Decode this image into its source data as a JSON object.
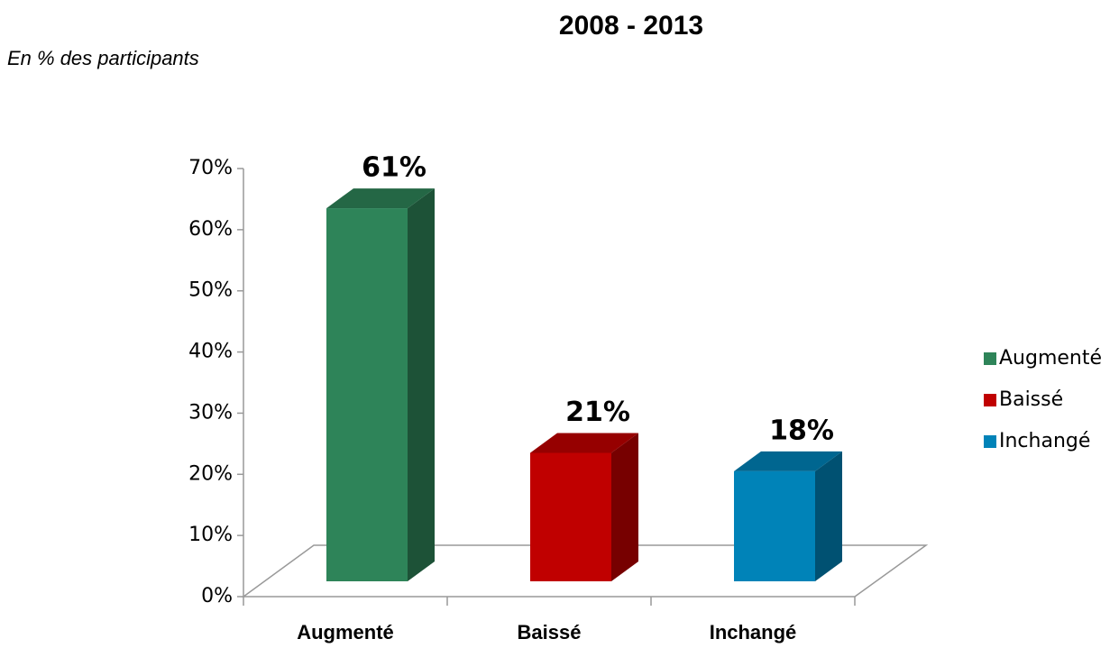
{
  "chart_data": {
    "type": "bar3d",
    "title": "2008 - 2013",
    "subtitle": "En % des participants",
    "categories": [
      "Augmenté",
      "Baissé",
      "Inchangé"
    ],
    "values": [
      61,
      21,
      18
    ],
    "value_labels": [
      "61%",
      "21%",
      "18%"
    ],
    "colors": [
      "#2e8459",
      "#c00000",
      "#0083b8"
    ],
    "ylim": [
      0,
      70
    ],
    "yticks": [
      {
        "value": 0,
        "label": "0%"
      },
      {
        "value": 10,
        "label": "10%"
      },
      {
        "value": 20,
        "label": "20%"
      },
      {
        "value": 30,
        "label": "30%"
      },
      {
        "value": 40,
        "label": "40%"
      },
      {
        "value": 50,
        "label": "50%"
      },
      {
        "value": 60,
        "label": "60%"
      },
      {
        "value": 70,
        "label": "70%"
      }
    ],
    "legend": "right"
  }
}
